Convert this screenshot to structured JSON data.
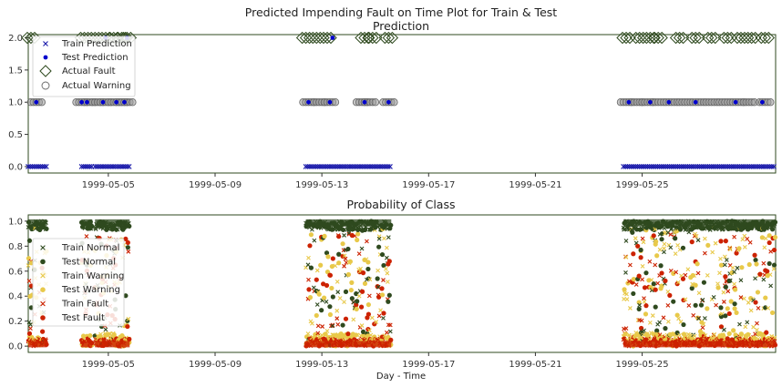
{
  "figure": {
    "suptitle": "Predicted Impending Fault on Time Plot for Train & Test",
    "xlabel": "Day - Time"
  },
  "colors": {
    "normal": "#2f4a1f",
    "warning": "#e8c94a",
    "fault": "#cc2200",
    "prediction": "#1a1aaa",
    "test_prediction": "#0000cc",
    "actual_warning_edge": "#666666"
  },
  "chart_data": [
    {
      "type": "scatter",
      "title": "Prediction",
      "xlabel": "",
      "ylabel": "",
      "x_range": [
        "1999-05-02",
        "1999-05-30"
      ],
      "ylim": [
        -0.1,
        2.05
      ],
      "yticks": [
        "0.0",
        "0.5",
        "1.0",
        "1.5",
        "2.0"
      ],
      "xticks": [
        "1999-05-05",
        "1999-05-09",
        "1999-05-13",
        "1999-05-17",
        "1999-05-21",
        "1999-05-25"
      ],
      "legend": {
        "placement": "upper-left",
        "entries": [
          "Train Prediction",
          "Test Prediction",
          "Actual Fault",
          "Actual Warning"
        ]
      },
      "grid": false,
      "series": [
        {
          "name": "Train Prediction",
          "marker": "x",
          "values_description": "predicted class 0/1/2",
          "segments": [
            {
              "x_start": "1999-05-02.0",
              "x_end": "1999-05-02.7",
              "y": 0.0
            },
            {
              "x_start": "1999-05-04.0",
              "x_end": "1999-05-04.4",
              "y": 0.0
            },
            {
              "x_start": "1999-05-04.5",
              "x_end": "1999-05-05.8",
              "y": 0.0
            },
            {
              "x_start": "1999-05-12.4",
              "x_end": "1999-05-15.6",
              "y": 0.0
            },
            {
              "x_start": "1999-05-24.3",
              "x_end": "1999-05-30.0",
              "y": 0.0
            }
          ]
        },
        {
          "name": "Test Prediction",
          "marker": "o",
          "points": [
            {
              "x": "1999-05-02.3",
              "y": 1.0
            },
            {
              "x": "1999-05-04.0",
              "y": 1.0
            },
            {
              "x": "1999-05-04.2",
              "y": 1.0
            },
            {
              "x": "1999-05-04.8",
              "y": 1.0
            },
            {
              "x": "1999-05-05.3",
              "y": 1.0
            },
            {
              "x": "1999-05-05.6",
              "y": 1.0
            },
            {
              "x": "1999-05-12.5",
              "y": 1.0
            },
            {
              "x": "1999-05-13.3",
              "y": 1.0
            },
            {
              "x": "1999-05-14.6",
              "y": 1.0
            },
            {
              "x": "1999-05-15.5",
              "y": 1.0
            },
            {
              "x": "1999-05-24.5",
              "y": 1.0
            },
            {
              "x": "1999-05-25.3",
              "y": 1.0
            },
            {
              "x": "1999-05-26.0",
              "y": 1.0
            },
            {
              "x": "1999-05-27.0",
              "y": 1.0
            },
            {
              "x": "1999-05-28.5",
              "y": 1.0
            },
            {
              "x": "1999-05-29.5",
              "y": 1.0
            },
            {
              "x": "1999-05-04.9",
              "y": 2.0
            },
            {
              "x": "1999-05-05.7",
              "y": 2.0
            },
            {
              "x": "1999-05-13.4",
              "y": 2.0
            }
          ]
        },
        {
          "name": "Actual Fault",
          "marker": "D",
          "points": [
            {
              "x": "1999-05-02.1",
              "y": 2.0
            },
            {
              "x": "1999-05-04.1",
              "y": 2.0
            },
            {
              "x": "1999-05-04.5",
              "y": 2.0
            },
            {
              "x": "1999-05-04.9",
              "y": 2.0
            },
            {
              "x": "1999-05-05.2",
              "y": 2.0
            },
            {
              "x": "1999-05-05.5",
              "y": 2.0
            },
            {
              "x": "1999-05-05.7",
              "y": 2.0
            },
            {
              "x": "1999-05-12.4",
              "y": 2.0
            },
            {
              "x": "1999-05-12.8",
              "y": 2.0
            },
            {
              "x": "1999-05-13.2",
              "y": 2.0
            },
            {
              "x": "1999-05-14.6",
              "y": 2.0
            },
            {
              "x": "1999-05-14.9",
              "y": 2.0
            },
            {
              "x": "1999-05-15.5",
              "y": 2.0
            },
            {
              "x": "1999-05-24.4",
              "y": 2.0
            },
            {
              "x": "1999-05-24.9",
              "y": 2.0
            },
            {
              "x": "1999-05-25.3",
              "y": 2.0
            },
            {
              "x": "1999-05-25.6",
              "y": 2.0
            },
            {
              "x": "1999-05-26.4",
              "y": 2.0
            },
            {
              "x": "1999-05-27.0",
              "y": 2.0
            },
            {
              "x": "1999-05-27.6",
              "y": 2.0
            },
            {
              "x": "1999-05-28.2",
              "y": 2.0
            },
            {
              "x": "1999-05-28.7",
              "y": 2.0
            },
            {
              "x": "1999-05-29.1",
              "y": 2.0
            },
            {
              "x": "1999-05-29.6",
              "y": 2.0
            }
          ]
        },
        {
          "name": "Actual Warning",
          "marker": "o-open",
          "points": [
            {
              "x": "1999-05-02.3",
              "y": 1.0
            },
            {
              "x": "1999-05-04.0",
              "y": 1.0
            },
            {
              "x": "1999-05-04.3",
              "y": 1.0
            },
            {
              "x": "1999-05-04.6",
              "y": 1.0
            },
            {
              "x": "1999-05-04.9",
              "y": 1.0
            },
            {
              "x": "1999-05-05.2",
              "y": 1.0
            },
            {
              "x": "1999-05-05.5",
              "y": 1.0
            },
            {
              "x": "1999-05-05.7",
              "y": 1.0
            },
            {
              "x": "1999-05-12.5",
              "y": 1.0
            },
            {
              "x": "1999-05-12.9",
              "y": 1.0
            },
            {
              "x": "1999-05-13.3",
              "y": 1.0
            },
            {
              "x": "1999-05-14.5",
              "y": 1.0
            },
            {
              "x": "1999-05-14.8",
              "y": 1.0
            },
            {
              "x": "1999-05-15.5",
              "y": 1.0
            },
            {
              "x": "1999-05-24.4",
              "y": 1.0
            },
            {
              "x": "1999-05-24.8",
              "y": 1.0
            },
            {
              "x": "1999-05-25.2",
              "y": 1.0
            },
            {
              "x": "1999-05-25.6",
              "y": 1.0
            },
            {
              "x": "1999-05-26.1",
              "y": 1.0
            },
            {
              "x": "1999-05-26.6",
              "y": 1.0
            },
            {
              "x": "1999-05-27.1",
              "y": 1.0
            },
            {
              "x": "1999-05-27.6",
              "y": 1.0
            },
            {
              "x": "1999-05-28.1",
              "y": 1.0
            },
            {
              "x": "1999-05-28.6",
              "y": 1.0
            },
            {
              "x": "1999-05-29.0",
              "y": 1.0
            },
            {
              "x": "1999-05-29.6",
              "y": 1.0
            }
          ]
        }
      ]
    },
    {
      "type": "scatter",
      "title": "Probability of Class",
      "xlabel": "Day - Time",
      "ylabel": "",
      "x_range": [
        "1999-05-02",
        "1999-05-30"
      ],
      "ylim": [
        -0.05,
        1.05
      ],
      "yticks": [
        "0.0",
        "0.2",
        "0.4",
        "0.6",
        "0.8",
        "1.0"
      ],
      "xticks": [
        "1999-05-05",
        "1999-05-09",
        "1999-05-13",
        "1999-05-17",
        "1999-05-21",
        "1999-05-25"
      ],
      "legend": {
        "placement": "center-left",
        "entries": [
          "Train Normal",
          "Test Normal",
          "Train Warning",
          "Test Warning",
          "Train Fault",
          "Test Fault"
        ]
      },
      "grid": false,
      "active_intervals": [
        [
          "1999-05-02.0",
          "1999-05-02.7"
        ],
        [
          "1999-05-04.0",
          "1999-05-04.4"
        ],
        [
          "1999-05-04.5",
          "1999-05-05.8"
        ],
        [
          "1999-05-12.4",
          "1999-05-15.6"
        ],
        [
          "1999-05-24.3",
          "1999-05-30.0"
        ]
      ],
      "series": [
        {
          "name": "Train Normal",
          "class": "normal",
          "marker": "x",
          "typical_range": [
            0.0,
            1.0
          ]
        },
        {
          "name": "Test Normal",
          "class": "normal",
          "marker": "o",
          "typical_range": [
            0.0,
            1.0
          ]
        },
        {
          "name": "Train Warning",
          "class": "warning",
          "marker": "x",
          "typical_range": [
            0.0,
            0.95
          ]
        },
        {
          "name": "Test Warning",
          "class": "warning",
          "marker": "o",
          "typical_range": [
            0.0,
            0.95
          ]
        },
        {
          "name": "Train Fault",
          "class": "fault",
          "marker": "x",
          "typical_range": [
            0.0,
            0.9
          ]
        },
        {
          "name": "Test Fault",
          "class": "fault",
          "marker": "o",
          "typical_range": [
            0.0,
            0.9
          ]
        }
      ]
    }
  ]
}
